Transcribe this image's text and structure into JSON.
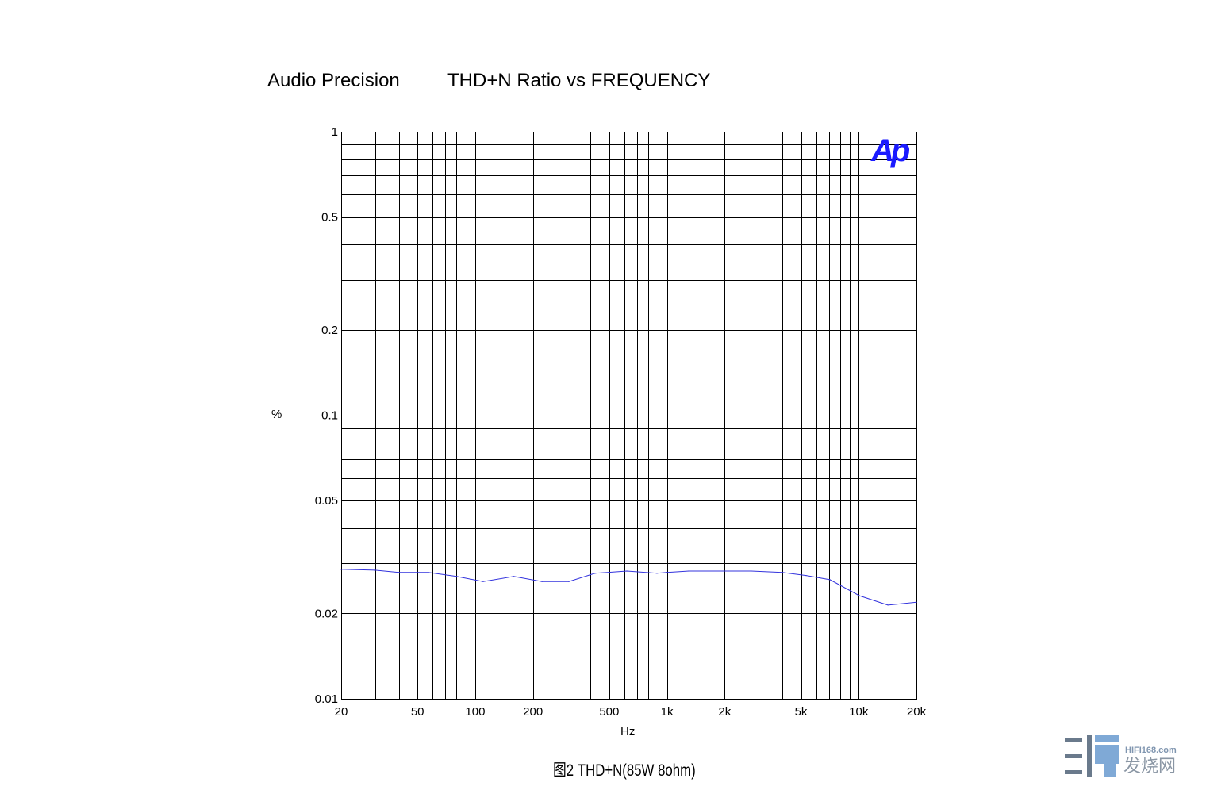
{
  "header": {
    "brand": "Audio Precision",
    "title": "THD+N Ratio vs FREQUENCY"
  },
  "caption": "图2 THD+N(85W 8ohm)",
  "watermark": {
    "site": "HIFI168.com",
    "name": "发烧网"
  },
  "logo": {
    "text": "Ap",
    "color": "#1a1aff"
  },
  "chart_data": {
    "type": "line",
    "title": "THD+N Ratio vs FREQUENCY",
    "xlabel": "Hz",
    "ylabel": "%",
    "xscale": "log",
    "yscale": "log",
    "xlim": [
      20,
      20000
    ],
    "ylim": [
      0.01,
      1
    ],
    "grid": true,
    "x_ticks": [
      {
        "v": 20,
        "label": "20"
      },
      {
        "v": 50,
        "label": "50"
      },
      {
        "v": 100,
        "label": "100"
      },
      {
        "v": 200,
        "label": "200"
      },
      {
        "v": 500,
        "label": "500"
      },
      {
        "v": 1000,
        "label": "1k"
      },
      {
        "v": 2000,
        "label": "2k"
      },
      {
        "v": 5000,
        "label": "5k"
      },
      {
        "v": 10000,
        "label": "10k"
      },
      {
        "v": 20000,
        "label": "20k"
      }
    ],
    "y_ticks": [
      {
        "v": 1,
        "label": "1"
      },
      {
        "v": 0.5,
        "label": "0.5"
      },
      {
        "v": 0.2,
        "label": "0.2"
      },
      {
        "v": 0.1,
        "label": "0.1"
      },
      {
        "v": 0.05,
        "label": "0.05"
      },
      {
        "v": 0.02,
        "label": "0.02"
      },
      {
        "v": 0.01,
        "label": "0.01"
      }
    ],
    "series": [
      {
        "color": "#3333dd",
        "x": [
          20,
          30,
          40,
          57,
          80,
          110,
          159,
          223,
          308,
          422,
          618,
          887,
          1000,
          1300,
          2750,
          4000,
          5320,
          7080,
          10070,
          14200,
          20000
        ],
        "y": [
          0.0286,
          0.0284,
          0.0279,
          0.0279,
          0.027,
          0.0259,
          0.027,
          0.0259,
          0.0259,
          0.0277,
          0.0282,
          0.0277,
          0.0279,
          0.0282,
          0.0282,
          0.0279,
          0.0272,
          0.0263,
          0.0231,
          0.0214,
          0.0219
        ]
      }
    ]
  }
}
